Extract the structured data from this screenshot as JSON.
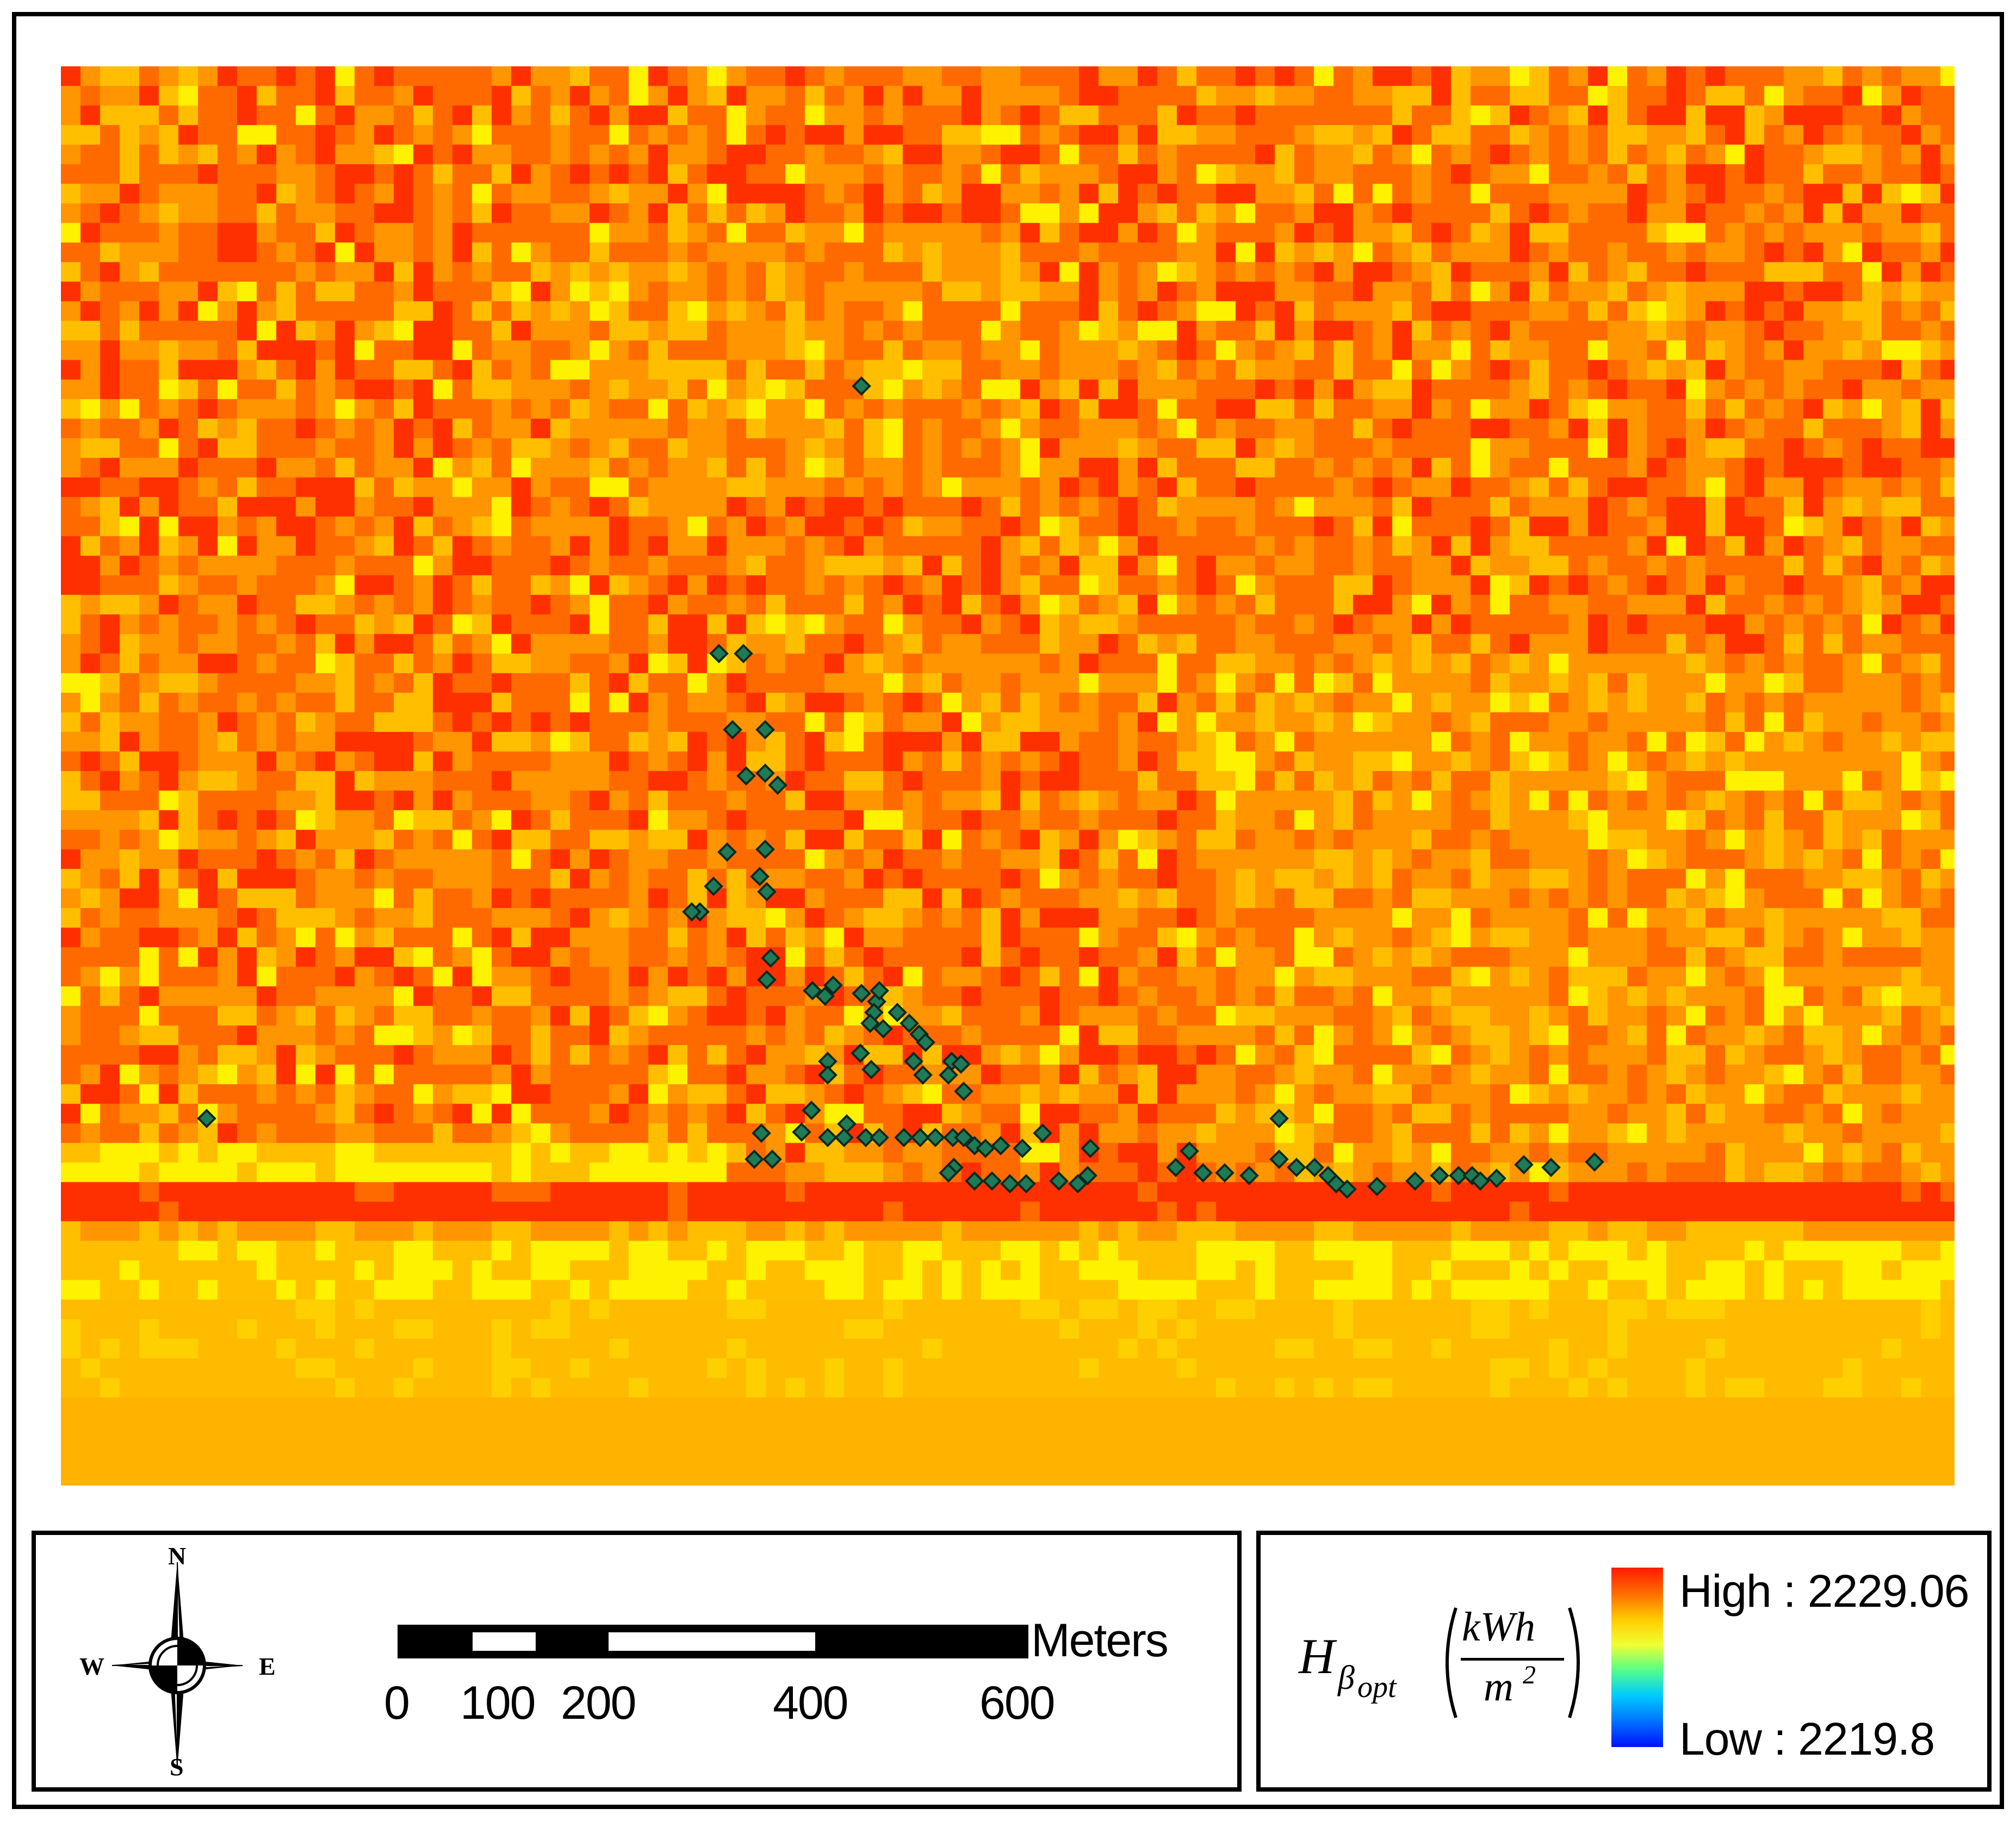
{
  "map": {
    "layer": "solar-irradiation-raster",
    "colors": {
      "yellow": "#fff200",
      "light_orange": "#ffbf00",
      "orange": "#ff9500",
      "orange_red": "#ff6a00",
      "red": "#ff3000"
    },
    "point_color": "#1f7a57",
    "point_outline": "#0b2a1d"
  },
  "compass": {
    "n": "N",
    "s": "S",
    "e": "E",
    "w": "W"
  },
  "scale_bar": {
    "unit": "Meters",
    "ticks": [
      "0",
      "100",
      "200",
      "400",
      "600"
    ],
    "tick_values": [
      0,
      100,
      200,
      400,
      600
    ]
  },
  "legend": {
    "symbol_main": "H",
    "symbol_sub": "β",
    "symbol_subsub": "opt",
    "unit_numerator": "kWh",
    "unit_denominator": "m",
    "unit_power": "2",
    "high_label": "High : 2229.06",
    "low_label": "Low : 2219.8",
    "high_value": 2229.06,
    "low_value": 2219.8,
    "ramp_colors": [
      "#ff1a00",
      "#ff6a00",
      "#ffcc00",
      "#f0ff33",
      "#55ff88",
      "#00ccff",
      "#0070ff",
      "#0010ff"
    ]
  }
}
